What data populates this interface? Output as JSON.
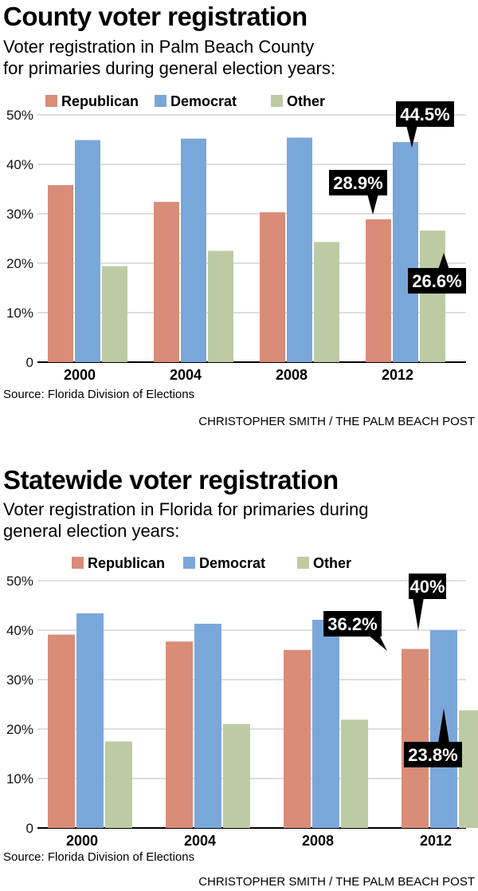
{
  "chart_data": [
    {
      "type": "bar",
      "title": "County voter registration",
      "subtitle_lines": [
        "Voter registration in Palm Beach County",
        "for primaries during general election years:"
      ],
      "categories": [
        "2000",
        "2004",
        "2008",
        "2012"
      ],
      "series": [
        {
          "name": "Republican",
          "color": "#d98c78",
          "values": [
            35.8,
            32.4,
            30.3,
            28.9
          ]
        },
        {
          "name": "Democrat",
          "color": "#7aa7da",
          "values": [
            44.9,
            45.2,
            45.4,
            44.5
          ]
        },
        {
          "name": "Other",
          "color": "#bccba4",
          "values": [
            19.4,
            22.5,
            24.3,
            26.6
          ]
        }
      ],
      "ylim": [
        0,
        50
      ],
      "yticks": [
        "0",
        "10%",
        "20%",
        "30%",
        "40%",
        "50%"
      ],
      "grid": true,
      "legend": "top",
      "annotations": [
        {
          "series": "Republican",
          "category": "2012",
          "label": "28.9%"
        },
        {
          "series": "Democrat",
          "category": "2012",
          "label": "44.5%"
        },
        {
          "series": "Other",
          "category": "2012",
          "label": "26.6%"
        }
      ],
      "source": "Source: Florida Division of Elections",
      "credit": "CHRISTOPHER SMITH / THE PALM BEACH POST"
    },
    {
      "type": "bar",
      "title": "Statewide voter registration",
      "subtitle_lines": [
        "Voter registration in Florida for primaries during",
        "general election years:"
      ],
      "categories": [
        "2000",
        "2004",
        "2008",
        "2012"
      ],
      "series": [
        {
          "name": "Republican",
          "color": "#d98c78",
          "values": [
            39.1,
            37.7,
            36.0,
            36.2
          ]
        },
        {
          "name": "Democrat",
          "color": "#7aa7da",
          "values": [
            43.4,
            41.3,
            42.1,
            40.0
          ]
        },
        {
          "name": "Other",
          "color": "#bccba4",
          "values": [
            17.5,
            21.0,
            21.9,
            23.8
          ]
        }
      ],
      "ylim": [
        0,
        50
      ],
      "yticks": [
        "0",
        "10%",
        "20%",
        "30%",
        "40%",
        "50%"
      ],
      "grid": true,
      "legend": "top",
      "annotations": [
        {
          "series": "Republican",
          "category": "2012",
          "label": "36.2%"
        },
        {
          "series": "Democrat",
          "category": "2012",
          "label": "40%"
        },
        {
          "series": "Other",
          "category": "2012",
          "label": "23.8%"
        }
      ],
      "source": "Source:    Florida Division of Elections",
      "credit": "CHRISTOPHER SMITH / THE PALM BEACH POST"
    }
  ]
}
